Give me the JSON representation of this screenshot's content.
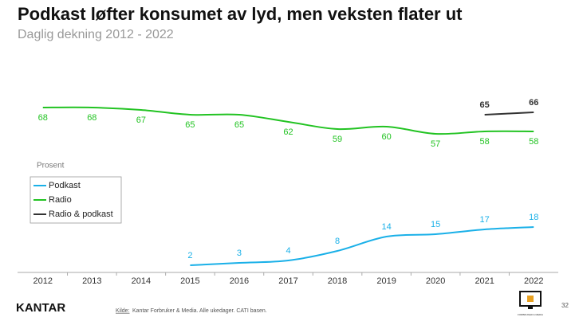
{
  "chart_data": {
    "type": "line",
    "title": "Podkast løfter konsumet av lyd, men veksten flater ut",
    "subtitle": "Daglig dekning 2012 - 2022",
    "y_axis_label": "Prosent",
    "categories": [
      "2012",
      "2013",
      "2014",
      "2015",
      "2016",
      "2017",
      "2018",
      "2019",
      "2020",
      "2021",
      "2022"
    ],
    "series": [
      {
        "name": "Podkast",
        "color": "#1ab0e8",
        "values": [
          null,
          null,
          null,
          2,
          3,
          4,
          8,
          14,
          15,
          17,
          18
        ]
      },
      {
        "name": "Radio",
        "color": "#22c322",
        "values": [
          68,
          68,
          67,
          65,
          65,
          62,
          59,
          60,
          57,
          58,
          58
        ]
      },
      {
        "name": "Radio & podkast",
        "color": "#333333",
        "values": [
          null,
          null,
          null,
          null,
          null,
          null,
          null,
          null,
          null,
          65,
          66
        ]
      }
    ],
    "ylim": [
      -1,
      72
    ],
    "legend": "left"
  },
  "footer": {
    "brand": "KANTAR",
    "source_label": "Kilde:",
    "source": "Kantar Forbruker & Media. Alle ukedager. CATI basen.",
    "page": "32",
    "icon_caption": "FORBRUKER & MEDIA"
  }
}
